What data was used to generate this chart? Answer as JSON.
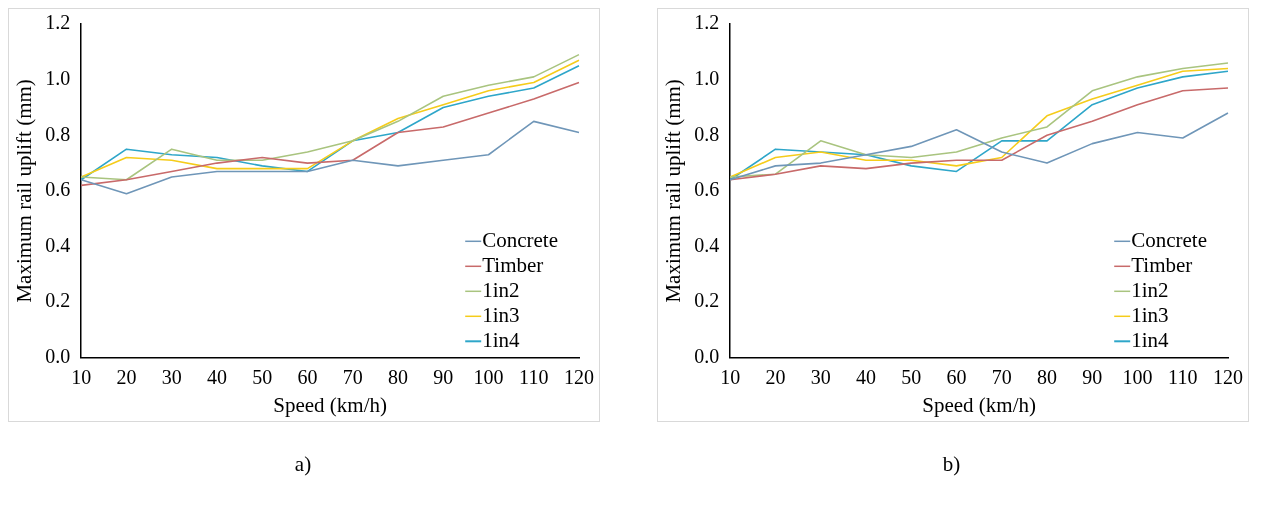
{
  "chart_data": [
    {
      "type": "line",
      "xlabel": "Speed (km/h)",
      "ylabel": "Maximum rail uplift (mm)",
      "categories": [
        "10",
        "20",
        "30",
        "40",
        "50",
        "60",
        "70",
        "80",
        "90",
        "100",
        "110",
        "120"
      ],
      "ylim": [
        0,
        1.2
      ],
      "yticks": [
        {
          "value": 0,
          "label": "0.0"
        },
        {
          "value": 0.2,
          "label": "0.2"
        },
        {
          "value": 0.4,
          "label": "0.4"
        },
        {
          "value": 0.6,
          "label": "0.6"
        },
        {
          "value": 0.8,
          "label": "0.8"
        },
        {
          "value": 1,
          "label": "1.0"
        },
        {
          "value": 1.2,
          "label": "1.2"
        }
      ],
      "grid": false,
      "legend": "bottom right",
      "marker": "none",
      "annotations": [
        "a)"
      ],
      "series": [
        {
          "name": "Concrete",
          "color": "#6f96b8",
          "values": [
            0.64,
            0.59,
            0.65,
            0.67,
            0.67,
            0.67,
            0.71,
            0.69,
            0.71,
            0.73,
            0.85,
            0.81
          ]
        },
        {
          "name": "Timber",
          "color": "#c86a6a",
          "values": [
            0.62,
            0.64,
            0.67,
            0.7,
            0.72,
            0.7,
            0.71,
            0.81,
            0.83,
            0.88,
            0.93,
            0.99
          ]
        },
        {
          "name": "1in2",
          "color": "#a9c47f",
          "values": [
            0.65,
            0.64,
            0.75,
            0.71,
            0.71,
            0.74,
            0.78,
            0.85,
            0.94,
            0.98,
            1.01,
            1.09
          ]
        },
        {
          "name": "1in3",
          "color": "#f5cc1a",
          "values": [
            0.65,
            0.72,
            0.71,
            0.68,
            0.68,
            0.68,
            0.78,
            0.86,
            0.91,
            0.96,
            0.99,
            1.07
          ]
        },
        {
          "name": "1in4",
          "color": "#2ea6c9",
          "values": [
            0.64,
            0.75,
            0.73,
            0.72,
            0.69,
            0.67,
            0.78,
            0.81,
            0.9,
            0.94,
            0.97,
            1.05
          ]
        }
      ]
    },
    {
      "type": "line",
      "xlabel": "Speed (km/h)",
      "ylabel": "Maximum rail uplift (mm)",
      "categories": [
        "10",
        "20",
        "30",
        "40",
        "50",
        "60",
        "70",
        "80",
        "90",
        "100",
        "110",
        "120"
      ],
      "ylim": [
        0,
        1.2
      ],
      "yticks": [
        {
          "value": 0,
          "label": "0.0"
        },
        {
          "value": 0.2,
          "label": "0.2"
        },
        {
          "value": 0.4,
          "label": "0.4"
        },
        {
          "value": 0.6,
          "label": "0.6"
        },
        {
          "value": 0.8,
          "label": "0.8"
        },
        {
          "value": 1,
          "label": "1.0"
        },
        {
          "value": 1.2,
          "label": "1.2"
        }
      ],
      "grid": false,
      "legend": "bottom right",
      "marker": "none",
      "annotations": [
        "b)"
      ],
      "series": [
        {
          "name": "Concrete",
          "color": "#6f96b8",
          "values": [
            0.64,
            0.69,
            0.7,
            0.73,
            0.76,
            0.82,
            0.74,
            0.7,
            0.77,
            0.81,
            0.79,
            0.88
          ]
        },
        {
          "name": "Timber",
          "color": "#c86a6a",
          "values": [
            0.64,
            0.66,
            0.69,
            0.68,
            0.7,
            0.71,
            0.71,
            0.8,
            0.85,
            0.91,
            0.96,
            0.97
          ]
        },
        {
          "name": "1in2",
          "color": "#a9c47f",
          "values": [
            0.65,
            0.66,
            0.78,
            0.73,
            0.72,
            0.74,
            0.79,
            0.83,
            0.96,
            1.01,
            1.04,
            1.06
          ]
        },
        {
          "name": "1in3",
          "color": "#f5cc1a",
          "values": [
            0.65,
            0.72,
            0.74,
            0.71,
            0.71,
            0.69,
            0.72,
            0.87,
            0.93,
            0.98,
            1.03,
            1.04
          ]
        },
        {
          "name": "1in4",
          "color": "#2ea6c9",
          "values": [
            0.64,
            0.75,
            0.74,
            0.73,
            0.69,
            0.67,
            0.78,
            0.78,
            0.91,
            0.97,
            1.01,
            1.03
          ]
        }
      ]
    }
  ]
}
